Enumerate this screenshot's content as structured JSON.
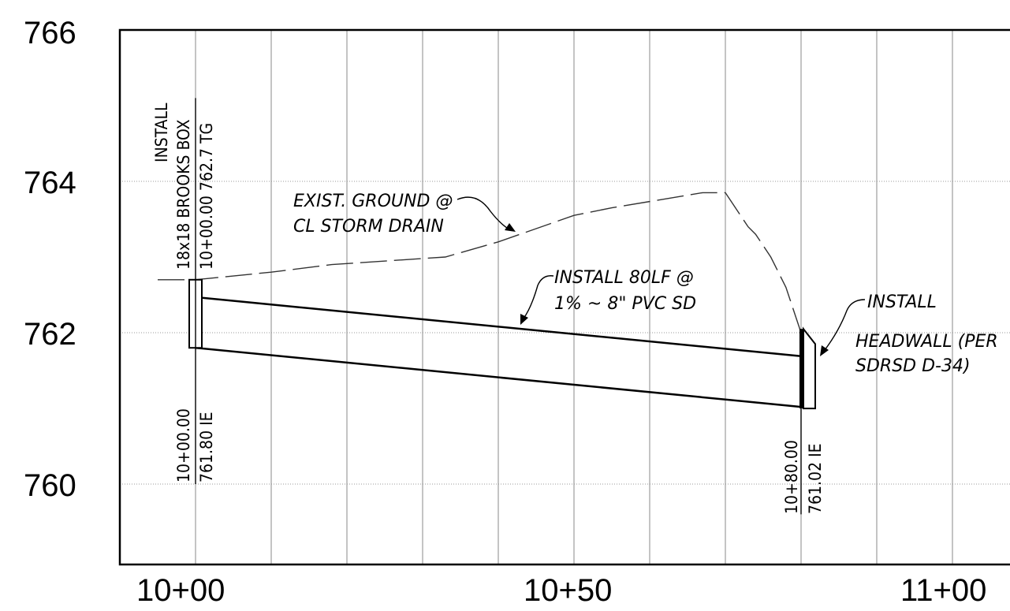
{
  "y_axis": {
    "ticks": [
      "766",
      "764",
      "762",
      "760"
    ]
  },
  "x_axis": {
    "ticks": [
      "10+00",
      "10+50",
      "11+00"
    ]
  },
  "annotations": {
    "brooks_box": {
      "line1": "INSTALL",
      "line2": "18x18 BROOKS BOX",
      "line3": "10+00.00 762.7 TG"
    },
    "start_invert": {
      "station": "10+00.00",
      "elevation": "761.80 IE"
    },
    "end_invert": {
      "station": "10+80.00",
      "elevation": "761.02 IE"
    },
    "ground": {
      "line1": "EXIST. GROUND @",
      "line2": "CL STORM DRAIN"
    },
    "pipe": {
      "line1": "INSTALL 80LF @",
      "line2": "1% ~ 8\" PVC SD"
    },
    "headwall": {
      "line1": "INSTALL",
      "line2": "HEADWALL (PER",
      "line3": "SDRSD D-34)"
    }
  },
  "profile_data": {
    "station_range": [
      9990,
      11010
    ],
    "elevation_range": [
      759.0,
      766.0
    ],
    "existing_ground": [
      [
        9995,
        762.7
      ],
      [
        10000,
        762.7
      ],
      [
        10010,
        762.8
      ],
      [
        10018,
        762.9
      ],
      [
        10033,
        763.0
      ],
      [
        10040,
        763.2
      ],
      [
        10050,
        763.55
      ],
      [
        10055,
        763.65
      ],
      [
        10067,
        763.85
      ],
      [
        10070,
        763.85
      ],
      [
        10073,
        763.4
      ],
      [
        10074,
        763.3
      ],
      [
        10076,
        763.0
      ],
      [
        10078,
        762.6
      ],
      [
        10080,
        762.0
      ],
      [
        10081,
        761.4
      ]
    ],
    "pipe": {
      "start_station": 10000,
      "end_station": 10080,
      "start_invert": 761.8,
      "end_invert": 761.02,
      "diameter_label": "8\"",
      "slope_label": "1%",
      "length_label": "80LF"
    },
    "brooks_box": {
      "station": 10000,
      "top_grate": 762.7,
      "invert": 761.8
    },
    "headwall": {
      "station": 10080,
      "invert": 761.02
    }
  }
}
